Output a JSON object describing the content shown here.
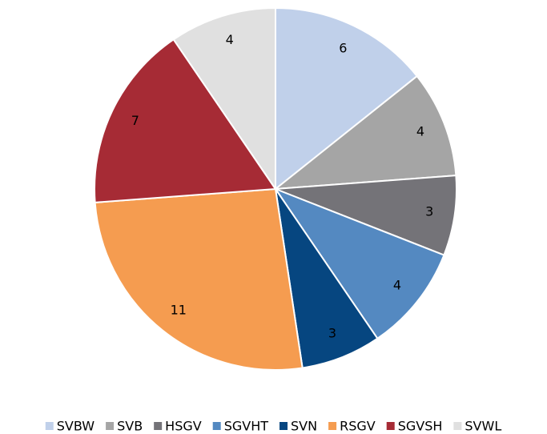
{
  "chart_data": {
    "type": "pie",
    "categories": [
      "SVBW",
      "SVB",
      "HSGV",
      "SGVHT",
      "SVN",
      "RSGV",
      "SGVSH",
      "SVWL"
    ],
    "values": [
      6,
      4,
      3,
      4,
      3,
      11,
      7,
      4
    ],
    "colors": [
      "#c0d0ea",
      "#a5a5a5",
      "#747378",
      "#5489c1",
      "#064680",
      "#f59c50",
      "#a62b35",
      "#e0e0e0"
    ],
    "legend": "bottom"
  }
}
